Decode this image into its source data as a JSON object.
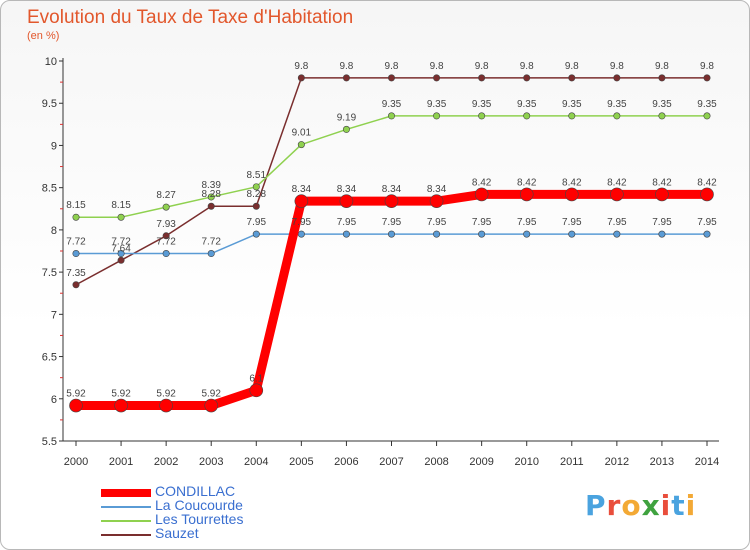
{
  "chart_data": {
    "type": "line",
    "title": "Evolution du Taux de Taxe d'Habitation",
    "unit_label": "(en %)",
    "x": [
      "2000",
      "2001",
      "2002",
      "2003",
      "2004",
      "2005",
      "2006",
      "2007",
      "2008",
      "2009",
      "2010",
      "2011",
      "2012",
      "2013",
      "2014"
    ],
    "ylim": [
      5.5,
      10
    ],
    "yticks": [
      5.5,
      6,
      6.5,
      7,
      7.5,
      8,
      8.5,
      9,
      9.5,
      10
    ],
    "grid": false,
    "series": [
      {
        "name": "CONDILLAC",
        "color": "#ff0000",
        "values": [
          5.92,
          5.92,
          5.92,
          5.92,
          6.1,
          8.34,
          8.34,
          8.34,
          8.34,
          8.42,
          8.42,
          8.42,
          8.42,
          8.42,
          8.42
        ],
        "labels": [
          "5.92",
          "5.92",
          "5.92",
          "5.92",
          "6.1",
          "8.34",
          "8.34",
          "8.34",
          "8.34",
          "8.42",
          "8.42",
          "8.42",
          "8.42",
          "8.42",
          "8.42"
        ]
      },
      {
        "name": "La Coucourde",
        "color": "#5a9bd5",
        "values": [
          7.72,
          7.72,
          7.72,
          7.72,
          7.95,
          7.95,
          7.95,
          7.95,
          7.95,
          7.95,
          7.95,
          7.95,
          7.95,
          7.95,
          7.95
        ],
        "labels": [
          "7.72",
          "7.72",
          "7.72",
          "7.72",
          "7.95",
          "7.95",
          "7.95",
          "7.95",
          "7.95",
          "7.95",
          "7.95",
          "7.95",
          "7.95",
          "7.95",
          "7.95"
        ]
      },
      {
        "name": "Les Tourrettes",
        "color": "#8fd14f",
        "values": [
          8.15,
          8.15,
          8.27,
          8.39,
          8.51,
          9.01,
          9.19,
          9.35,
          9.35,
          9.35,
          9.35,
          9.35,
          9.35,
          9.35,
          9.35
        ],
        "labels": [
          "8.15",
          "8.15",
          "8.27",
          "8.39",
          "8.51",
          "9.01",
          "9.19",
          "9.35",
          "9.35",
          "9.35",
          "9.35",
          "9.35",
          "9.35",
          "9.35",
          "9.35"
        ]
      },
      {
        "name": "Sauzet",
        "color": "#7a2e2e",
        "values": [
          7.35,
          7.64,
          7.93,
          8.28,
          8.28,
          9.8,
          9.8,
          9.8,
          9.8,
          9.8,
          9.8,
          9.8,
          9.8,
          9.8,
          9.8
        ],
        "labels": [
          "7.35",
          "7.64",
          "7.93",
          "8.28",
          "8.28",
          "9.8",
          "9.8",
          "9.8",
          "9.8",
          "9.8",
          "9.8",
          "9.8",
          "9.8",
          "9.8",
          "9.8"
        ]
      }
    ]
  },
  "logo": {
    "text": "Proxiti",
    "letters": [
      "P",
      "r",
      "o",
      "x",
      "i",
      "t",
      "i"
    ],
    "colors": [
      "#4aa3df",
      "#e94e3c",
      "#f3a935",
      "#3fa23f",
      "#e94e3c",
      "#4aa3df",
      "#f3a935"
    ]
  }
}
